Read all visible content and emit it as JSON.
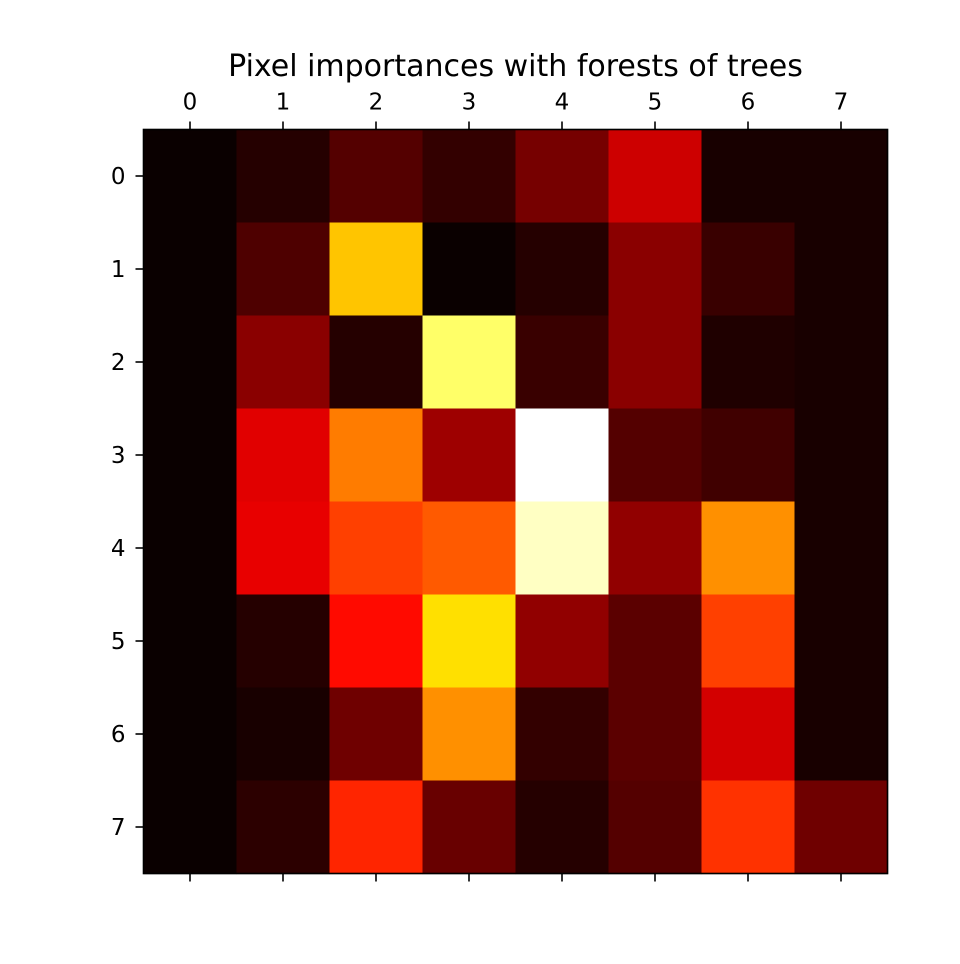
{
  "chart_data": {
    "type": "heatmap",
    "title": "Pixel importances with forests of trees",
    "xlabel": "",
    "ylabel": "",
    "x_ticks": [
      "0",
      "1",
      "2",
      "3",
      "4",
      "5",
      "6",
      "7"
    ],
    "y_ticks": [
      "0",
      "1",
      "2",
      "3",
      "4",
      "5",
      "6",
      "7"
    ],
    "x_axis_position": "top",
    "colormap": "hot",
    "colorbar": false,
    "grid": false,
    "values": [
      [
        0.0,
        0.04,
        0.11,
        0.06,
        0.16,
        0.29,
        0.02,
        0.02
      ],
      [
        0.0,
        0.1,
        0.66,
        0.0,
        0.04,
        0.19,
        0.07,
        0.02
      ],
      [
        0.0,
        0.19,
        0.04,
        0.85,
        0.07,
        0.19,
        0.03,
        0.02
      ],
      [
        0.0,
        0.32,
        0.55,
        0.22,
        1.0,
        0.11,
        0.08,
        0.02
      ],
      [
        0.0,
        0.33,
        0.46,
        0.5,
        0.94,
        0.2,
        0.58,
        0.02
      ],
      [
        0.0,
        0.04,
        0.38,
        0.7,
        0.2,
        0.12,
        0.46,
        0.02
      ],
      [
        0.0,
        0.02,
        0.15,
        0.58,
        0.06,
        0.12,
        0.3,
        0.02
      ],
      [
        0.0,
        0.05,
        0.42,
        0.14,
        0.04,
        0.11,
        0.44,
        0.15
      ]
    ]
  }
}
